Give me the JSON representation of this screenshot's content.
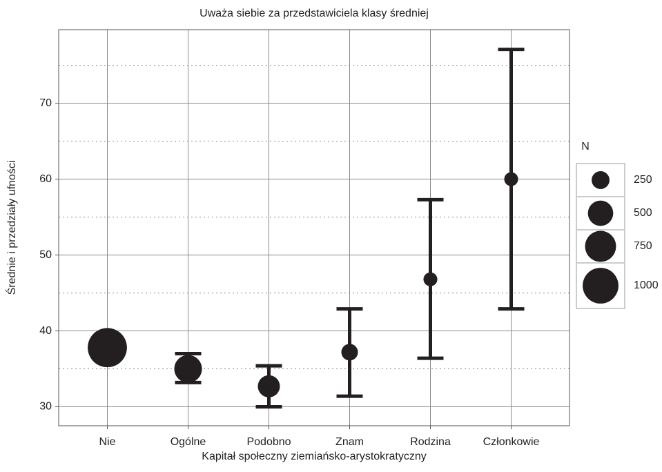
{
  "chart_data": {
    "type": "errorbar",
    "title": "Uważa siebie za przedstawiciela klasy średniej",
    "x_label": "Kapitał społeczny ziemiańsko-arystokratyczny",
    "y_label": "Średnie i przedziały ufności",
    "categories": [
      "Nie",
      "Ogólne",
      "Podobno",
      "Znam",
      "Rodzina",
      "Członkowie"
    ],
    "values": [
      37.8,
      35.0,
      32.7,
      37.2,
      46.8,
      60.0
    ],
    "lower": [
      37.4,
      33.2,
      30.0,
      31.4,
      36.4,
      42.9
    ],
    "upper": [
      38.2,
      37.0,
      35.4,
      42.9,
      57.3,
      77.1
    ],
    "sizes": [
      1200,
      600,
      380,
      215,
      150,
      150
    ],
    "color": "#231f20",
    "ylim": [
      27.5,
      79.7
    ],
    "yticks": [
      30,
      40,
      50,
      60,
      70
    ],
    "minor_yticks": [
      35,
      45,
      55,
      65,
      75
    ],
    "grid": true,
    "size_legend": {
      "title": "N",
      "values": [
        250,
        500,
        750,
        1000
      ]
    }
  }
}
